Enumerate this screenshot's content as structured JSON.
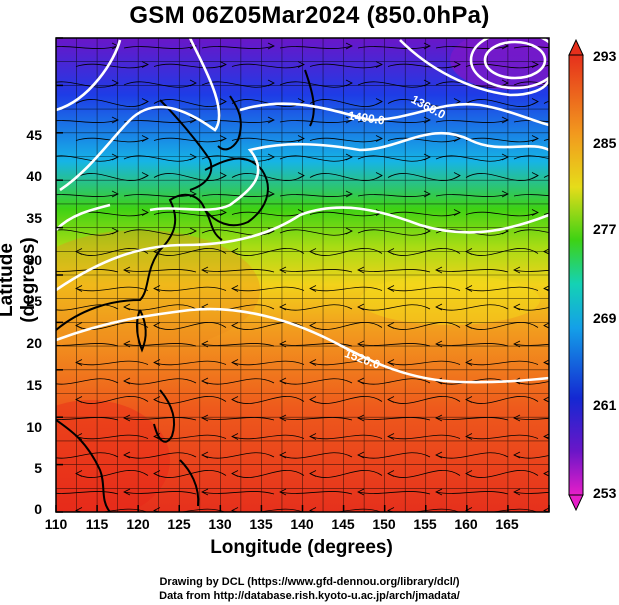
{
  "title": "GSM 06Z05Mar2024 (850.0hPa)",
  "axes": {
    "xlabel": "Longitude (degrees)",
    "ylabel": "Latitude (degrees)",
    "xticks": [
      "110",
      "115",
      "120",
      "125",
      "130",
      "135",
      "140",
      "145",
      "150",
      "155",
      "160",
      "165"
    ],
    "yticks": [
      "0",
      "5",
      "10",
      "15",
      "20",
      "25",
      "30",
      "35",
      "40",
      "45"
    ]
  },
  "colorbar": {
    "labels": [
      "293",
      "285",
      "277",
      "269",
      "261",
      "253"
    ]
  },
  "contour_labels": [
    "1400.0",
    "1360.0",
    "1520.0"
  ],
  "credits": {
    "line1": "Drawing by DCL (https://www.gfd-dennou.org/library/dcl/)",
    "line2": "Data from http://database.rish.kyoto-u.ac.jp/arch/jmadata/"
  },
  "colors": {
    "purple": "#6a16c8",
    "blue": "#1438e0",
    "cyan": "#14b4e8",
    "green": "#3ed214",
    "yellow": "#f2d21a",
    "orange": "#f0961e",
    "red": "#e62e1e",
    "magenta": "#e61ec8"
  }
}
